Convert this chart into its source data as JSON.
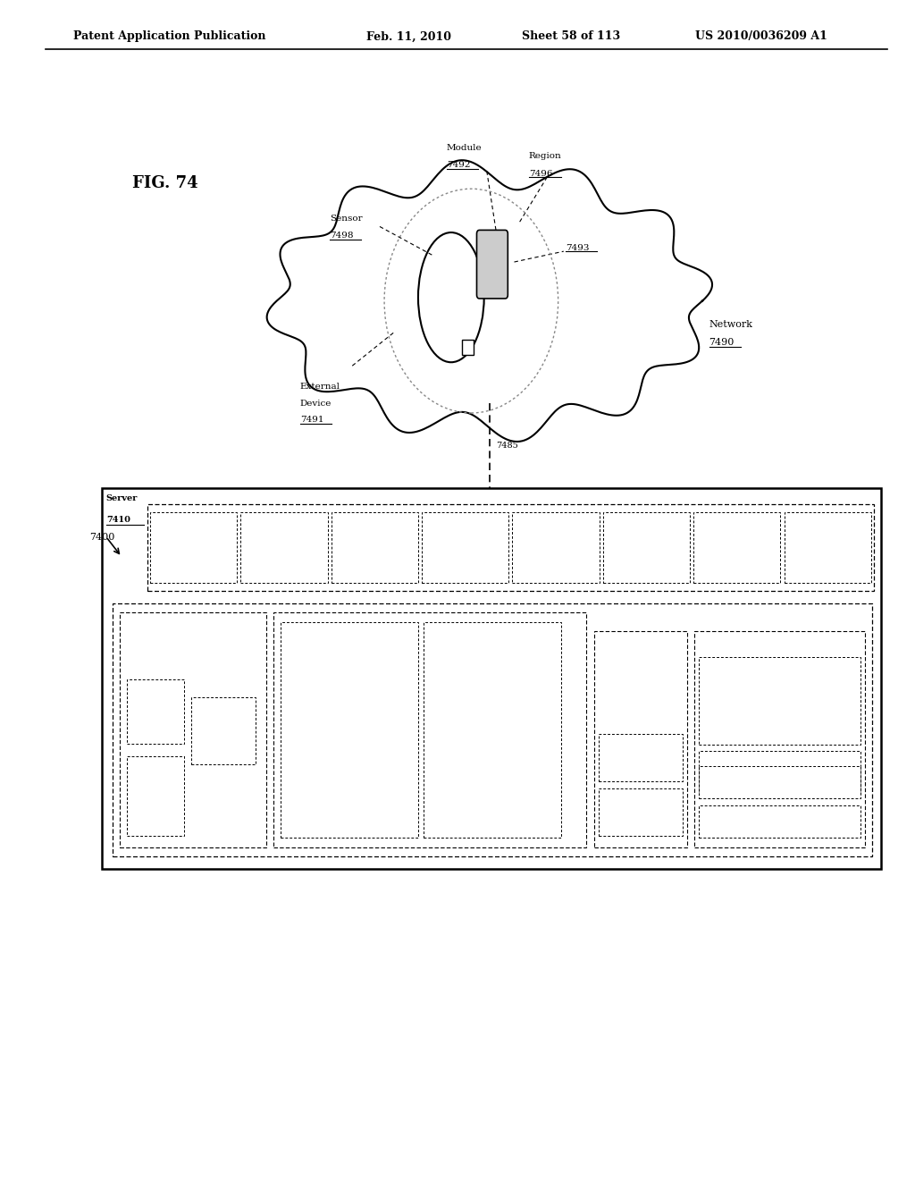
{
  "title_text": "Patent Application Publication",
  "title_date": "Feb. 11, 2010",
  "title_sheet": "Sheet 58 of 113",
  "title_patent": "US 2010/0036209 A1",
  "fig_label": "FIG. 74",
  "background_color": "#ffffff",
  "line_color": "#000000"
}
